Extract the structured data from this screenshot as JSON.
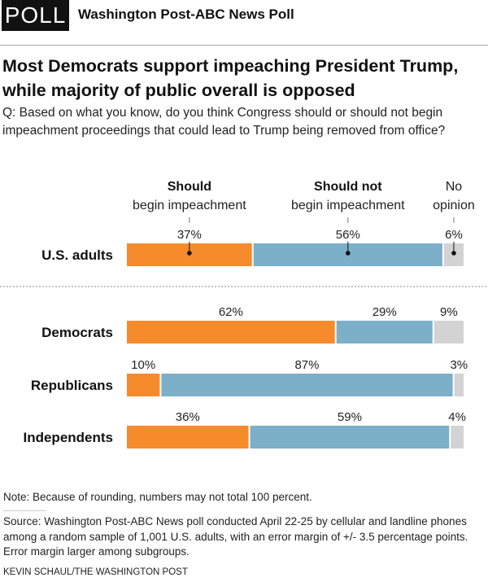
{
  "header": {
    "badge": "POLL",
    "kicker": "Washington Post-ABC News Poll"
  },
  "title": "Most Democrats support impeaching President Trump, while majority of public overall is opposed",
  "question": "Q: Based on what you know, do you think Congress should or should not begin impeachment proceedings that could lead to Trump being removed from office?",
  "chart_data": {
    "type": "bar",
    "orientation": "horizontal-stacked-100",
    "series": [
      {
        "name": "Should begin impeachment",
        "header_bold": "Should",
        "header_rest": "begin impeachment",
        "color": "#f68b2c",
        "values": [
          37,
          62,
          10,
          36
        ]
      },
      {
        "name": "Should not begin impeachment",
        "header_bold": "Should not",
        "header_rest": "begin impeachment",
        "color": "#7cafc8",
        "values": [
          56,
          29,
          87,
          59
        ]
      },
      {
        "name": "No opinion",
        "header_bold": "",
        "header_rest": "No opinion",
        "color": "#d3d3d3",
        "values": [
          6,
          9,
          3,
          4
        ]
      }
    ],
    "categories": [
      "U.S. adults",
      "Democrats",
      "Republicans",
      "Independents"
    ],
    "value_suffix": "%",
    "separator_after": "U.S. adults"
  },
  "footer": {
    "note": "Note: Because of rounding, numbers may not total 100 percent.",
    "source": "Source: Washington Post-ABC News poll conducted April 22-25 by cellular and landline phones among a random sample of 1,001 U.S. adults, with an error margin of +/- 3.5 percentage points. Error margin larger among subgroups.",
    "credit": "KEVIN SCHAUL/THE WASHINGTON POST"
  }
}
